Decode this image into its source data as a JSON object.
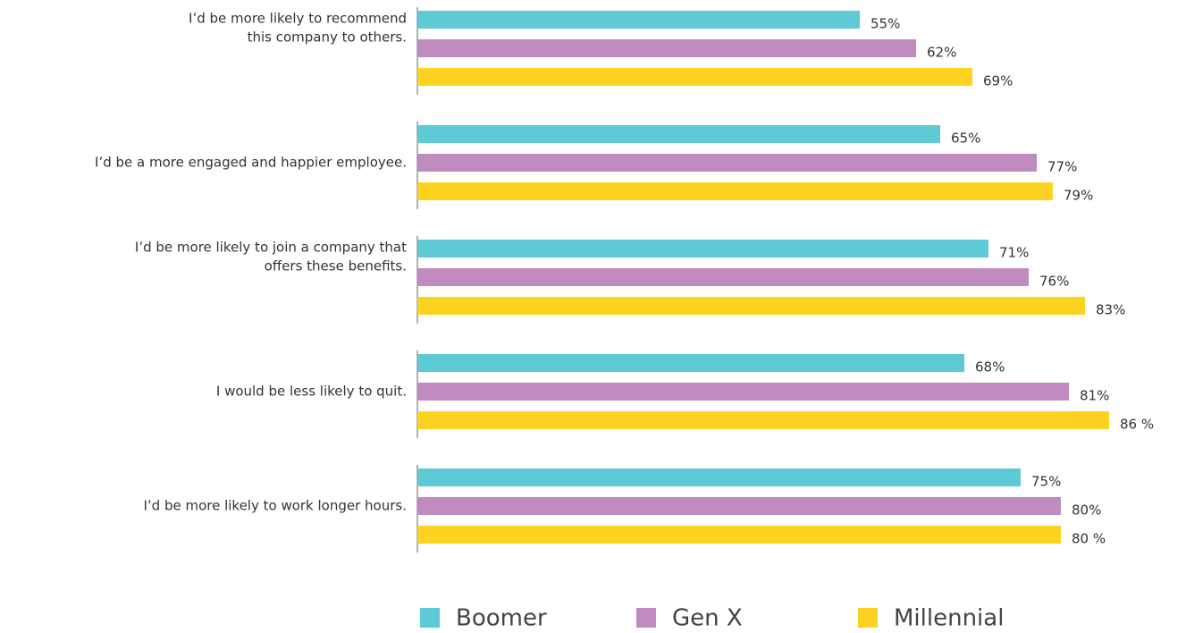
{
  "chart_data": {
    "type": "hbar",
    "categories": [
      [
        "I’d be more likely to recommend",
        "this company to others."
      ],
      [
        "I’d be a more engaged and happier employee."
      ],
      [
        "I’d be more likely to join a company that",
        "offers these benefits."
      ],
      [
        "I would be less likely to quit."
      ],
      [
        "I’d be more likely to work longer hours."
      ]
    ],
    "series": [
      {
        "name": "Boomer",
        "color": "#5ecad6",
        "values": [
          55,
          65,
          71,
          68,
          75
        ],
        "value_labels": [
          "55%",
          "65%",
          "71%",
          "68%",
          "75%"
        ]
      },
      {
        "name": "Gen X",
        "color": "#c08bbf",
        "values": [
          62,
          77,
          76,
          81,
          80
        ],
        "value_labels": [
          "62%",
          "77%",
          "76%",
          "81%",
          "80%"
        ]
      },
      {
        "name": "Millennial",
        "color": "#fdd322",
        "values": [
          69,
          79,
          83,
          86,
          80
        ],
        "value_labels": [
          "69%",
          "79%",
          "83%",
          "86 %",
          "80 %"
        ]
      }
    ],
    "legend": "bottom"
  }
}
